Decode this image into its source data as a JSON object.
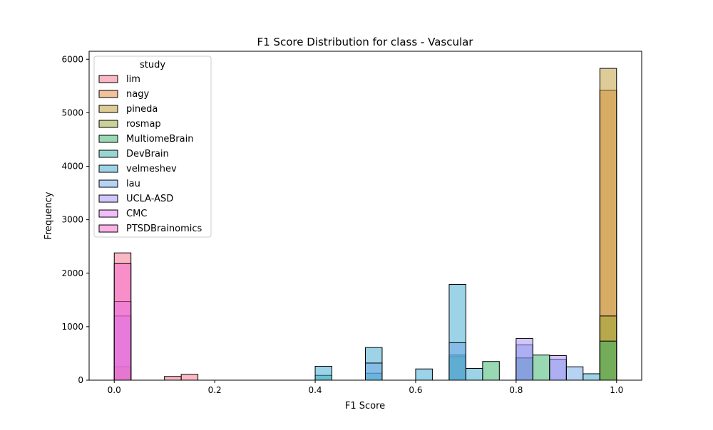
{
  "chart_data": {
    "type": "bar",
    "title": "F1 Score Distribution for class - Vascular",
    "xlabel": "F1 Score",
    "ylabel": "Frequency",
    "xlim": [
      -0.05,
      1.05
    ],
    "ylim": [
      0,
      6150
    ],
    "xticks": [
      "0.0",
      "0.2",
      "0.4",
      "0.6",
      "0.8",
      "1.0"
    ],
    "yticks": [
      "0",
      "1000",
      "2000",
      "3000",
      "4000",
      "5000",
      "6000"
    ],
    "grid": false,
    "legend": {
      "title": "study",
      "placement": "top-left"
    },
    "bin_width": 0.0333,
    "series": [
      {
        "name": "lim",
        "color": "#f77189",
        "bins": [
          {
            "x0": 0.0,
            "value": 2380
          },
          {
            "x0": 0.1,
            "value": 70
          },
          {
            "x0": 0.1333,
            "value": 110
          }
        ]
      },
      {
        "name": "nagy",
        "color": "#e58637",
        "bins": [
          {
            "x0": 0.0,
            "value": 250
          },
          {
            "x0": 0.9667,
            "value": 5420
          }
        ]
      },
      {
        "name": "pineda",
        "color": "#bb9832",
        "bins": [
          {
            "x0": 0.9667,
            "value": 5830
          }
        ]
      },
      {
        "name": "rosmap",
        "color": "#97a431",
        "bins": [
          {
            "x0": 0.9667,
            "value": 1200
          }
        ]
      },
      {
        "name": "MultiomeBrain",
        "color": "#32b166",
        "bins": [
          {
            "x0": 0.6667,
            "value": 440
          },
          {
            "x0": 0.7333,
            "value": 350
          },
          {
            "x0": 0.8,
            "value": 410
          },
          {
            "x0": 0.8333,
            "value": 470
          },
          {
            "x0": 0.9667,
            "value": 730
          }
        ]
      },
      {
        "name": "DevBrain",
        "color": "#36ada4",
        "bins": [
          {
            "x0": 0.4,
            "value": 90
          },
          {
            "x0": 0.5,
            "value": 130
          },
          {
            "x0": 0.6667,
            "value": 470
          },
          {
            "x0": 0.8,
            "value": 420
          }
        ]
      },
      {
        "name": "velmeshev",
        "color": "#39a7d0",
        "bins": [
          {
            "x0": 0.4,
            "value": 260
          },
          {
            "x0": 0.5,
            "value": 610
          },
          {
            "x0": 0.6,
            "value": 210
          },
          {
            "x0": 0.6667,
            "value": 1790
          },
          {
            "x0": 0.7,
            "value": 220
          },
          {
            "x0": 0.9333,
            "value": 120
          }
        ]
      },
      {
        "name": "lau",
        "color": "#6ea8e8",
        "bins": [
          {
            "x0": 0.5,
            "value": 320
          },
          {
            "x0": 0.6667,
            "value": 700
          },
          {
            "x0": 0.8,
            "value": 660
          },
          {
            "x0": 0.8667,
            "value": 390
          },
          {
            "x0": 0.9,
            "value": 250
          }
        ]
      },
      {
        "name": "UCLA-ASD",
        "color": "#a48cf4",
        "bins": [
          {
            "x0": 0.0,
            "value": 1200
          },
          {
            "x0": 0.8,
            "value": 780
          },
          {
            "x0": 0.8667,
            "value": 460
          }
        ]
      },
      {
        "name": "CMC",
        "color": "#e17cf4",
        "bins": [
          {
            "x0": 0.0,
            "value": 1470
          }
        ]
      },
      {
        "name": "PTSDBrainomics",
        "color": "#f565cc",
        "bins": [
          {
            "x0": 0.0,
            "value": 2180
          }
        ]
      }
    ]
  }
}
